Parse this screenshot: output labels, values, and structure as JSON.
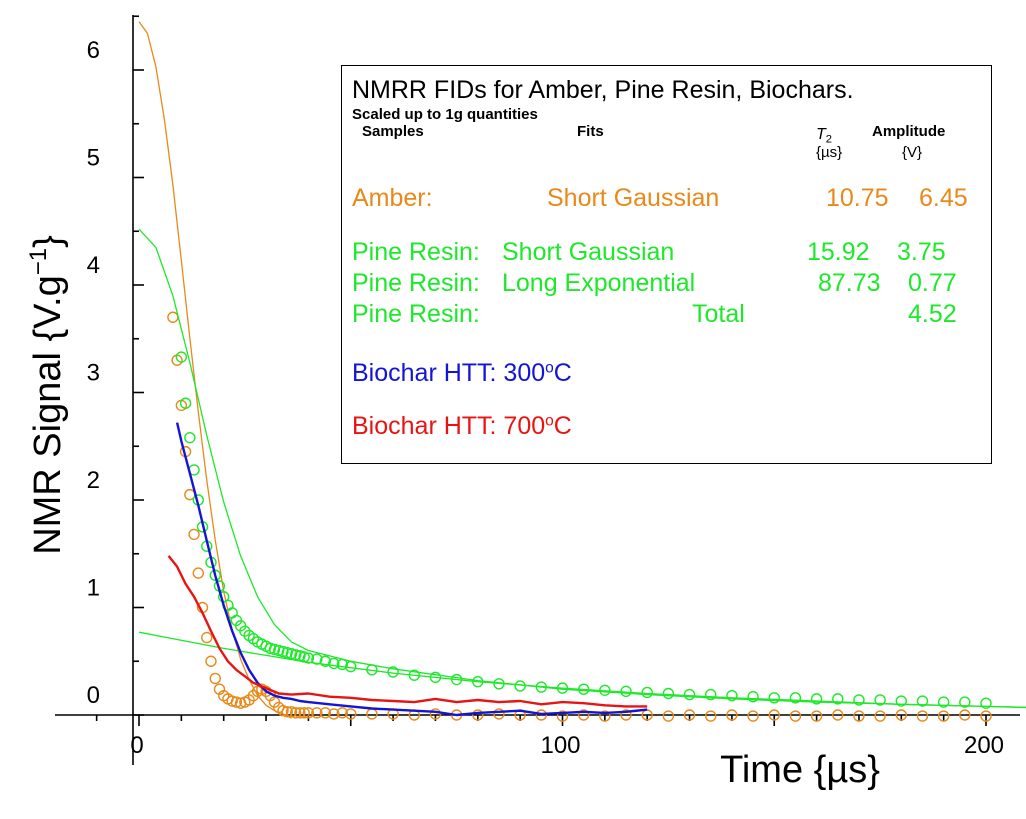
{
  "chart_data": {
    "type": "line",
    "xlabel": "Time  {µs}",
    "ylabel_main": "NMR  Signal  {V.g",
    "ylabel_sup": "−1",
    "ylabel_close": "}",
    "xlim": [
      0,
      210
    ],
    "ylim": [
      -0.25,
      6.5
    ],
    "x_ticks": [
      0,
      100,
      200
    ],
    "y_ticks": [
      0,
      1,
      2,
      3,
      4,
      5,
      6
    ],
    "series": [
      {
        "name": "Amber",
        "color": "#e8891a",
        "style": "markers",
        "x": [
          8,
          9,
          10,
          11,
          12,
          13,
          14,
          15,
          16,
          17,
          18,
          19,
          20,
          21,
          22,
          23,
          24,
          25,
          26,
          27,
          28,
          29,
          30,
          31,
          32,
          33,
          34,
          35,
          36,
          37,
          38,
          39,
          40,
          42,
          44,
          46,
          48,
          50,
          55,
          60,
          65,
          70,
          75,
          80,
          85,
          90,
          95,
          100,
          105,
          110,
          115,
          120,
          125,
          130,
          135,
          140,
          145,
          150,
          155,
          160,
          165,
          170,
          175,
          180,
          185,
          190,
          195,
          200
        ],
        "y": [
          3.7,
          3.3,
          2.88,
          2.45,
          2.05,
          1.68,
          1.32,
          1.0,
          0.72,
          0.5,
          0.34,
          0.24,
          0.18,
          0.15,
          0.13,
          0.12,
          0.11,
          0.12,
          0.14,
          0.18,
          0.22,
          0.24,
          0.22,
          0.18,
          0.12,
          0.07,
          0.04,
          0.03,
          0.03,
          0.02,
          0.02,
          0.02,
          0.02,
          0.02,
          0.02,
          0.01,
          0.02,
          0.01,
          0.01,
          0.01,
          0.0,
          0.01,
          0.0,
          0.0,
          0.01,
          0.0,
          0.0,
          -0.01,
          0.0,
          -0.01,
          0.0,
          0.0,
          -0.01,
          0.0,
          -0.01,
          0.0,
          -0.01,
          0.0,
          -0.01,
          -0.01,
          0.0,
          -0.01,
          -0.01,
          0.0,
          -0.01,
          -0.01,
          0.0,
          -0.01
        ]
      },
      {
        "name": "Amber: Short Gaussian fit",
        "color": "#e8891a",
        "style": "line",
        "T2": 10.75,
        "amplitude": 6.45,
        "x": [
          0,
          2,
          4,
          6,
          8,
          10,
          12,
          14,
          16,
          18,
          20,
          22,
          24,
          26,
          28,
          30,
          32,
          34,
          36
        ],
        "y": [
          6.45,
          6.34,
          6.03,
          5.54,
          4.93,
          4.23,
          3.51,
          2.82,
          2.18,
          1.63,
          1.15,
          0.79,
          0.52,
          0.33,
          0.18,
          0.09,
          0.04,
          0.01,
          -0.03
        ]
      },
      {
        "name": "Pine Resin",
        "color": "#1ee82a",
        "style": "markers",
        "x": [
          10,
          11,
          12,
          13,
          14,
          15,
          16,
          17,
          18,
          19,
          20,
          21,
          22,
          23,
          24,
          25,
          26,
          27,
          28,
          29,
          30,
          31,
          32,
          33,
          34,
          35,
          36,
          37,
          38,
          39,
          40,
          42,
          44,
          46,
          48,
          50,
          55,
          60,
          65,
          70,
          75,
          80,
          85,
          90,
          95,
          100,
          105,
          110,
          115,
          120,
          125,
          130,
          135,
          140,
          145,
          150,
          155,
          160,
          165,
          170,
          175,
          180,
          185,
          190,
          195,
          200
        ],
        "y": [
          3.33,
          2.9,
          2.58,
          2.28,
          2.0,
          1.75,
          1.57,
          1.42,
          1.3,
          1.2,
          1.1,
          1.02,
          0.95,
          0.88,
          0.83,
          0.78,
          0.74,
          0.71,
          0.68,
          0.66,
          0.64,
          0.62,
          0.61,
          0.6,
          0.59,
          0.58,
          0.57,
          0.56,
          0.55,
          0.54,
          0.53,
          0.52,
          0.5,
          0.48,
          0.47,
          0.45,
          0.42,
          0.4,
          0.37,
          0.35,
          0.33,
          0.31,
          0.29,
          0.27,
          0.26,
          0.25,
          0.24,
          0.23,
          0.22,
          0.21,
          0.2,
          0.19,
          0.19,
          0.18,
          0.17,
          0.16,
          0.16,
          0.15,
          0.15,
          0.14,
          0.14,
          0.13,
          0.13,
          0.12,
          0.12,
          0.11
        ]
      },
      {
        "name": "Pine Resin: Total fit",
        "color": "#1ee82a",
        "style": "line",
        "x": [
          0,
          4,
          8,
          12,
          16,
          20,
          24,
          28,
          32,
          36,
          40,
          50,
          60,
          80,
          100,
          120,
          140,
          160,
          180,
          200,
          210
        ],
        "y": [
          4.52,
          4.35,
          3.9,
          3.28,
          2.6,
          1.98,
          1.48,
          1.1,
          0.84,
          0.68,
          0.6,
          0.5,
          0.43,
          0.32,
          0.24,
          0.19,
          0.15,
          0.12,
          0.1,
          0.08,
          0.07
        ]
      },
      {
        "name": "Pine Resin: Long Exponential fit",
        "color": "#1ee82a",
        "style": "line",
        "T2": 87.73,
        "amplitude": 0.77,
        "x": [
          0,
          20,
          40,
          60,
          80,
          100,
          120,
          140,
          160,
          180,
          200,
          210
        ],
        "y": [
          0.77,
          0.62,
          0.49,
          0.39,
          0.31,
          0.25,
          0.2,
          0.16,
          0.13,
          0.1,
          0.08,
          0.07
        ]
      },
      {
        "name": "Biochar HTT: 300°C",
        "color": "#1414d6",
        "style": "line",
        "x": [
          9,
          10,
          12,
          14,
          16,
          18,
          20,
          22,
          24,
          26,
          28,
          30,
          32,
          34,
          36,
          38,
          40,
          45,
          50,
          55,
          60,
          65,
          70,
          75,
          80,
          85,
          90,
          95,
          100,
          105,
          110,
          115,
          120
        ],
        "y": [
          2.72,
          2.55,
          2.25,
          1.95,
          1.62,
          1.3,
          1.02,
          0.78,
          0.58,
          0.42,
          0.3,
          0.22,
          0.18,
          0.16,
          0.15,
          0.13,
          0.12,
          0.1,
          0.08,
          0.06,
          0.05,
          0.04,
          0.03,
          0.0,
          0.02,
          0.03,
          0.04,
          0.01,
          0.02,
          0.03,
          0.02,
          0.03,
          0.05
        ]
      },
      {
        "name": "Biochar HTT: 700°C",
        "color": "#e81414",
        "style": "line",
        "x": [
          7,
          9,
          11,
          13,
          15,
          17,
          19,
          21,
          23,
          25,
          27,
          30,
          33,
          36,
          40,
          45,
          50,
          55,
          60,
          65,
          70,
          75,
          80,
          85,
          90,
          95,
          100,
          105,
          110,
          115,
          120
        ],
        "y": [
          1.48,
          1.38,
          1.22,
          1.1,
          0.95,
          0.78,
          0.62,
          0.5,
          0.42,
          0.36,
          0.3,
          0.25,
          0.2,
          0.19,
          0.2,
          0.17,
          0.16,
          0.14,
          0.13,
          0.12,
          0.15,
          0.12,
          0.14,
          0.12,
          0.13,
          0.1,
          0.12,
          0.11,
          0.09,
          0.08,
          0.08
        ]
      }
    ],
    "legend": {
      "placement": "top-right",
      "title": "NMRR FIDs for Amber, Pine Resin, Biochars.",
      "subtitle": "Scaled up to 1g quantities",
      "head_samples": "Samples",
      "head_fits": "Fits",
      "head_t2": "T",
      "head_t2_sub": "2",
      "head_amp": "Amplitude",
      "unit_t2": "{µs}",
      "unit_amp": "{V}",
      "rows": [
        {
          "sample": "Amber:",
          "fit": "Short  Gaussian",
          "t2": "10.75",
          "amp": "6.45",
          "color": "#e8891a"
        },
        {
          "sample": "Pine  Resin:",
          "fit": "Short  Gaussian",
          "t2": "15.92",
          "amp": "3.75",
          "color": "#1ee82a"
        },
        {
          "sample": "Pine  Resin:",
          "fit": "Long  Exponential",
          "t2": "87.73",
          "amp": "0.77",
          "color": "#1ee82a"
        },
        {
          "sample": "Pine  Resin:",
          "fit": "Total",
          "t2": "",
          "amp": "4.52",
          "color": "#1ee82a"
        }
      ],
      "biochar_300_main": "Biochar  HTT:  300",
      "biochar_300_sup": "o",
      "biochar_300_end": "C",
      "biochar_700_main": "Biochar  HTT:  700",
      "biochar_700_sup": "o",
      "biochar_700_end": "C",
      "biochar_300_color": "#1414d6",
      "biochar_700_color": "#e81414"
    }
  }
}
